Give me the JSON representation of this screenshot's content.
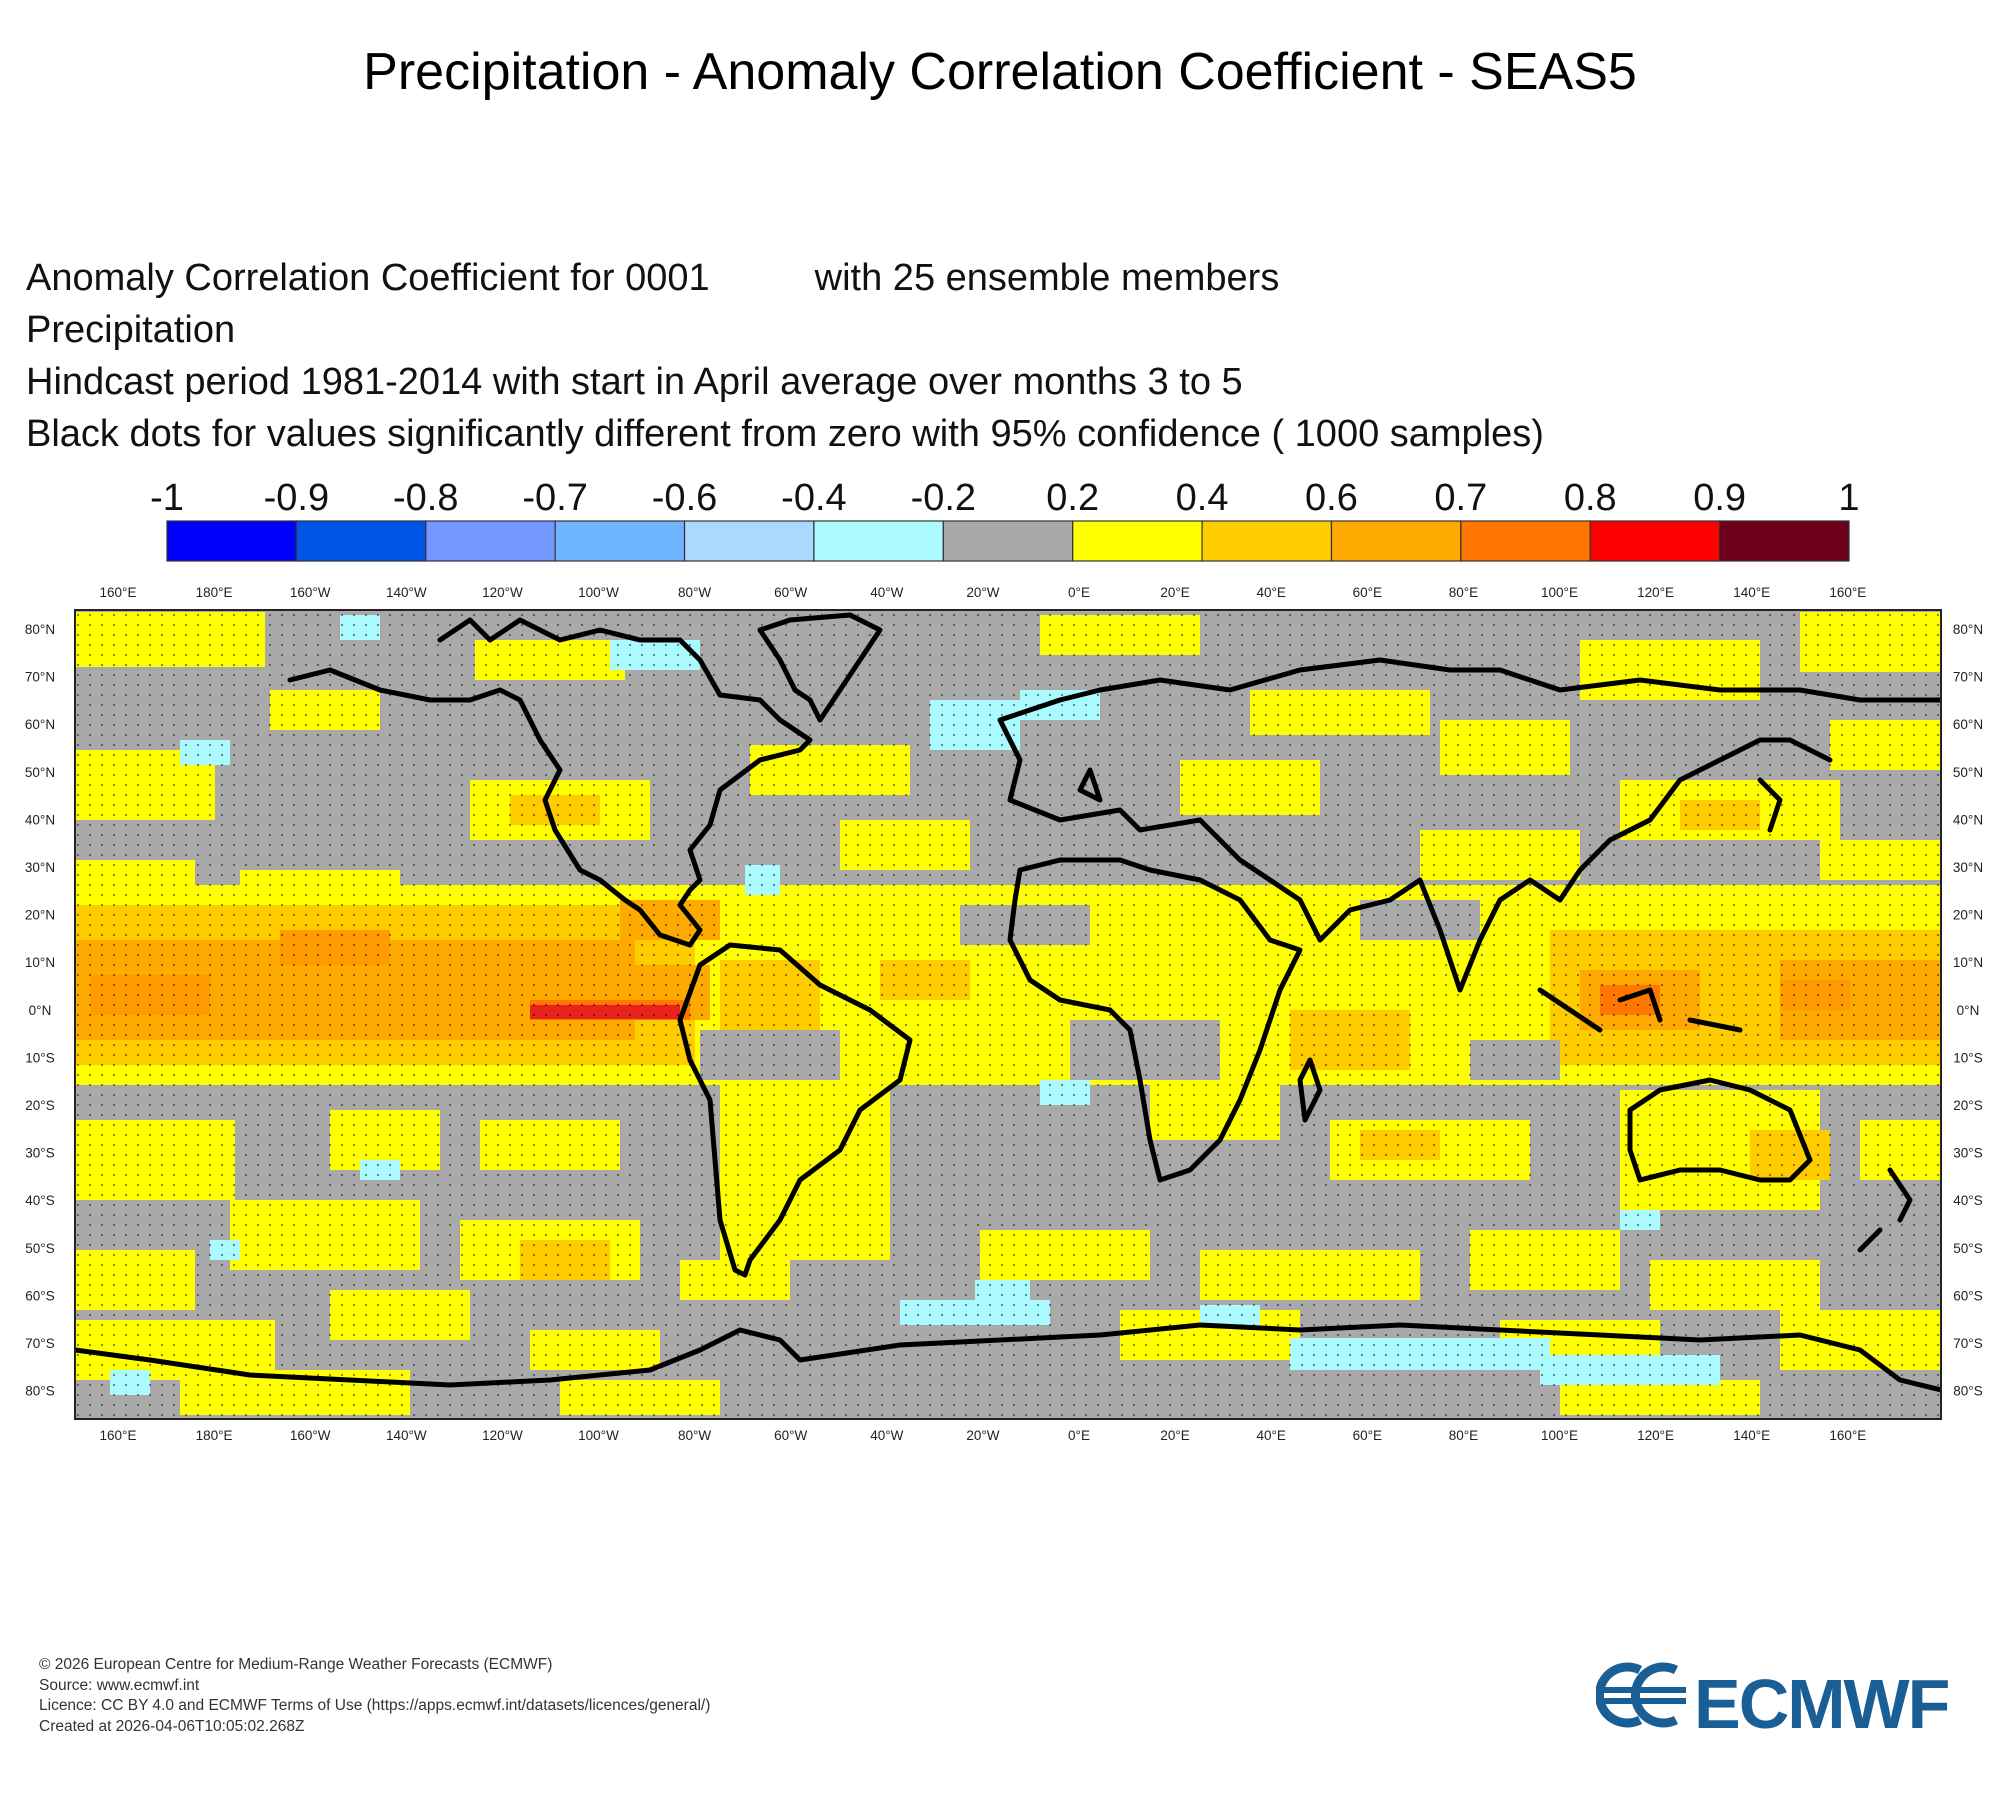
{
  "page": {
    "title": "Precipitation - Anomaly Correlation Coefficient - SEAS5"
  },
  "description": {
    "line1": "Anomaly Correlation Coefficient for 0001",
    "line1_right": "with 25 ensemble members",
    "line2": "Precipitation",
    "line3": "Hindcast period 1981-2014 with start in April average over months  3 to  5",
    "line4": "Black dots for values significantly different from zero with 95% confidence ( 1000 samples)"
  },
  "legend": {
    "labels": [
      "-1",
      "-0.9",
      "-0.8",
      "-0.7",
      "-0.6",
      "-0.4",
      "-0.2",
      "0.2",
      "0.4",
      "0.6",
      "0.7",
      "0.8",
      "0.9",
      "1"
    ],
    "colors": [
      "#0000ff",
      "#0055e6",
      "#7396ff",
      "#6eb4ff",
      "#aad8ff",
      "#aafaff",
      "#a9a9a9",
      "#ffff00",
      "#ffcc00",
      "#ffaa00",
      "#ff7700",
      "#ff0000",
      "#6b0018"
    ]
  },
  "map": {
    "lon_labels": [
      "160°E",
      "180°E",
      "160°W",
      "140°W",
      "120°W",
      "100°W",
      "80°W",
      "60°W",
      "40°W",
      "20°W",
      "0°E",
      "20°E",
      "40°E",
      "60°E",
      "80°E",
      "100°E",
      "120°E",
      "140°E",
      "160°E"
    ],
    "lat_labels": [
      "80°N",
      "70°N",
      "60°N",
      "50°N",
      "40°N",
      "30°N",
      "20°N",
      "10°N",
      "0°N",
      "10°S",
      "20°S",
      "30°S",
      "40°S",
      "50°S",
      "60°S",
      "70°S",
      "80°S"
    ],
    "colors": {
      "grey": "#a9a9a9",
      "yellow": "#ffff00",
      "light_orange": "#ffcc00",
      "orange": "#ffaa00",
      "dark_orange": "#ff7700",
      "red": "#ff0000",
      "cyan": "#aafaff",
      "coast": "#000000"
    }
  },
  "footer": {
    "line1": "© 2026 European Centre for Medium-Range Weather Forecasts (ECMWF)",
    "line2": "Source: www.ecmwf.int",
    "line3": "Licence: CC BY 4.0 and ECMWF Terms of Use (https://apps.ecmwf.int/datasets/licences/general/)",
    "line4": "Created at 2026-04-06T10:05:02.268Z"
  },
  "logo": {
    "text": "ECMWF",
    "color": "#1a5e96"
  }
}
